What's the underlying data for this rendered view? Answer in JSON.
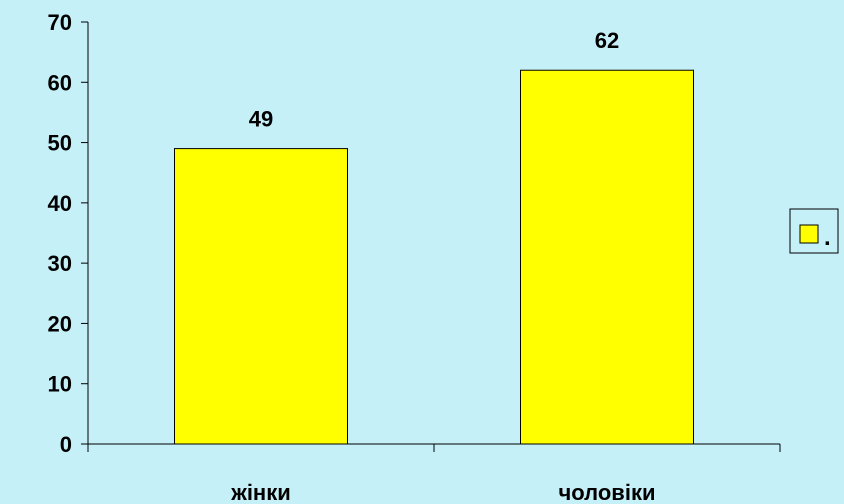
{
  "chart_data": {
    "type": "bar",
    "categories": [
      "жінки",
      "чоловіки"
    ],
    "series": [
      {
        "name": ".",
        "values": [
          49,
          62
        ],
        "color": "#ffff00"
      }
    ],
    "ylim": [
      0,
      70
    ],
    "yticks": [
      0,
      10,
      20,
      30,
      40,
      50,
      60,
      70
    ],
    "grid": false,
    "legend": "right",
    "colors": {
      "background": "#c6f0f8",
      "bar": "#ffff00",
      "bar_border": "#000000"
    }
  }
}
